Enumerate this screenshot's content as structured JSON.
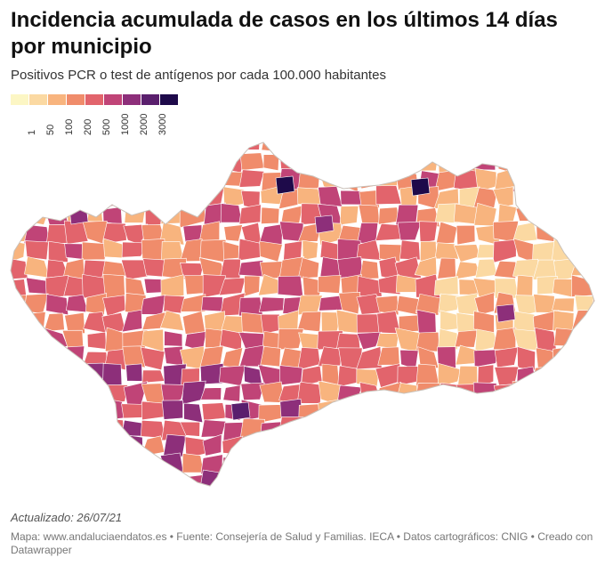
{
  "title": "Incidencia acumulada de casos en los últimos 14 días por municipio",
  "subtitle": "Positivos PCR o test de antígenos por cada 100.000 habitantes",
  "legend": {
    "colors": [
      "#fcf6c4",
      "#fbd9a2",
      "#f8b47e",
      "#f08c6b",
      "#e2646c",
      "#c04477",
      "#8d2f7a",
      "#5a1f6d",
      "#1e0a4a"
    ],
    "ticks": [
      "1",
      "50",
      "100",
      "200",
      "500",
      "1000",
      "2000",
      "3000"
    ]
  },
  "updated": "Actualizado: 26/07/21",
  "footer": "Mapa: www.andaluciaendatos.es • Fuente: Consejería de Salud y Familias. IECA • Datos cartográficos: CNIG • Creado con Datawrapper"
}
